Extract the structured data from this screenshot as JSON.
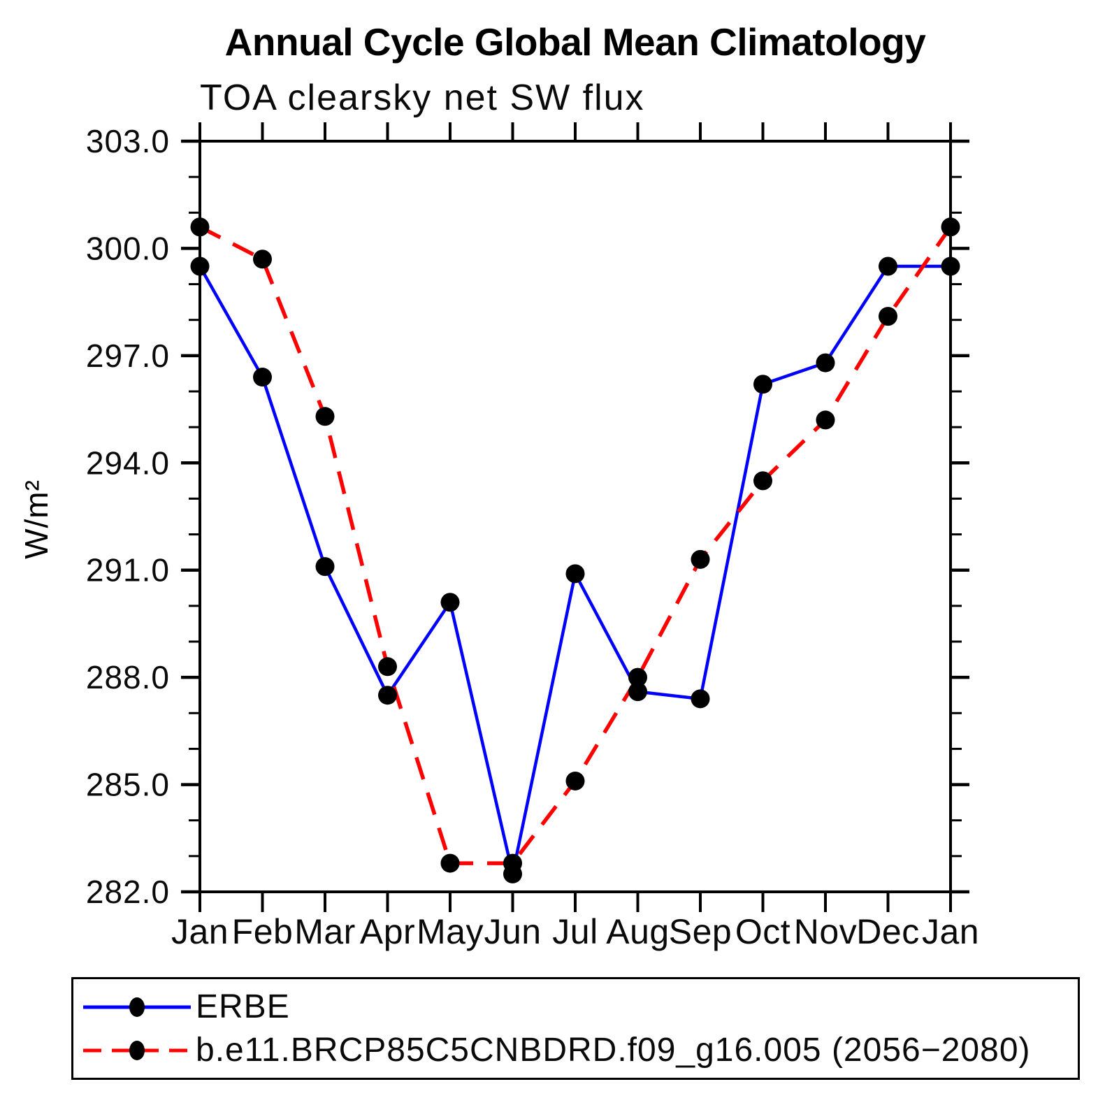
{
  "chart_data": {
    "type": "line",
    "title": "Annual Cycle Global Mean Climatology",
    "subtitle": "TOA clearsky net SW flux",
    "ylabel": "W/m²",
    "categories": [
      "Jan",
      "Feb",
      "Mar",
      "Apr",
      "May",
      "Jun",
      "Jul",
      "Aug",
      "Sep",
      "Oct",
      "Nov",
      "Dec",
      "Jan"
    ],
    "series": [
      {
        "name": "ERBE",
        "color": "#0000ff",
        "line_style": "solid",
        "marker": "circle",
        "marker_color": "#000000",
        "values": [
          299.5,
          296.4,
          291.1,
          287.5,
          290.1,
          282.5,
          290.9,
          287.6,
          287.4,
          296.2,
          296.8,
          299.5,
          299.5
        ]
      },
      {
        "name": "b.e11.BRCP85C5CNBDRD.f09_g16.005 (2056−2080)",
        "color": "#ff0000",
        "line_style": "dashed",
        "marker": "circle",
        "marker_color": "#000000",
        "values": [
          300.6,
          299.7,
          295.3,
          288.3,
          282.8,
          282.8,
          285.1,
          288.0,
          291.3,
          293.5,
          295.2,
          298.1,
          300.6
        ]
      }
    ],
    "ylim": [
      282.0,
      303.0
    ],
    "ytick_major_step": 3.0,
    "ytick_minor_step": 1.0,
    "ytick_labels": [
      "303.0",
      "300.0",
      "297.0",
      "294.0",
      "291.0",
      "288.0",
      "285.0",
      "282.0"
    ],
    "grid": "off",
    "legend_position": "bottom-left-box"
  }
}
